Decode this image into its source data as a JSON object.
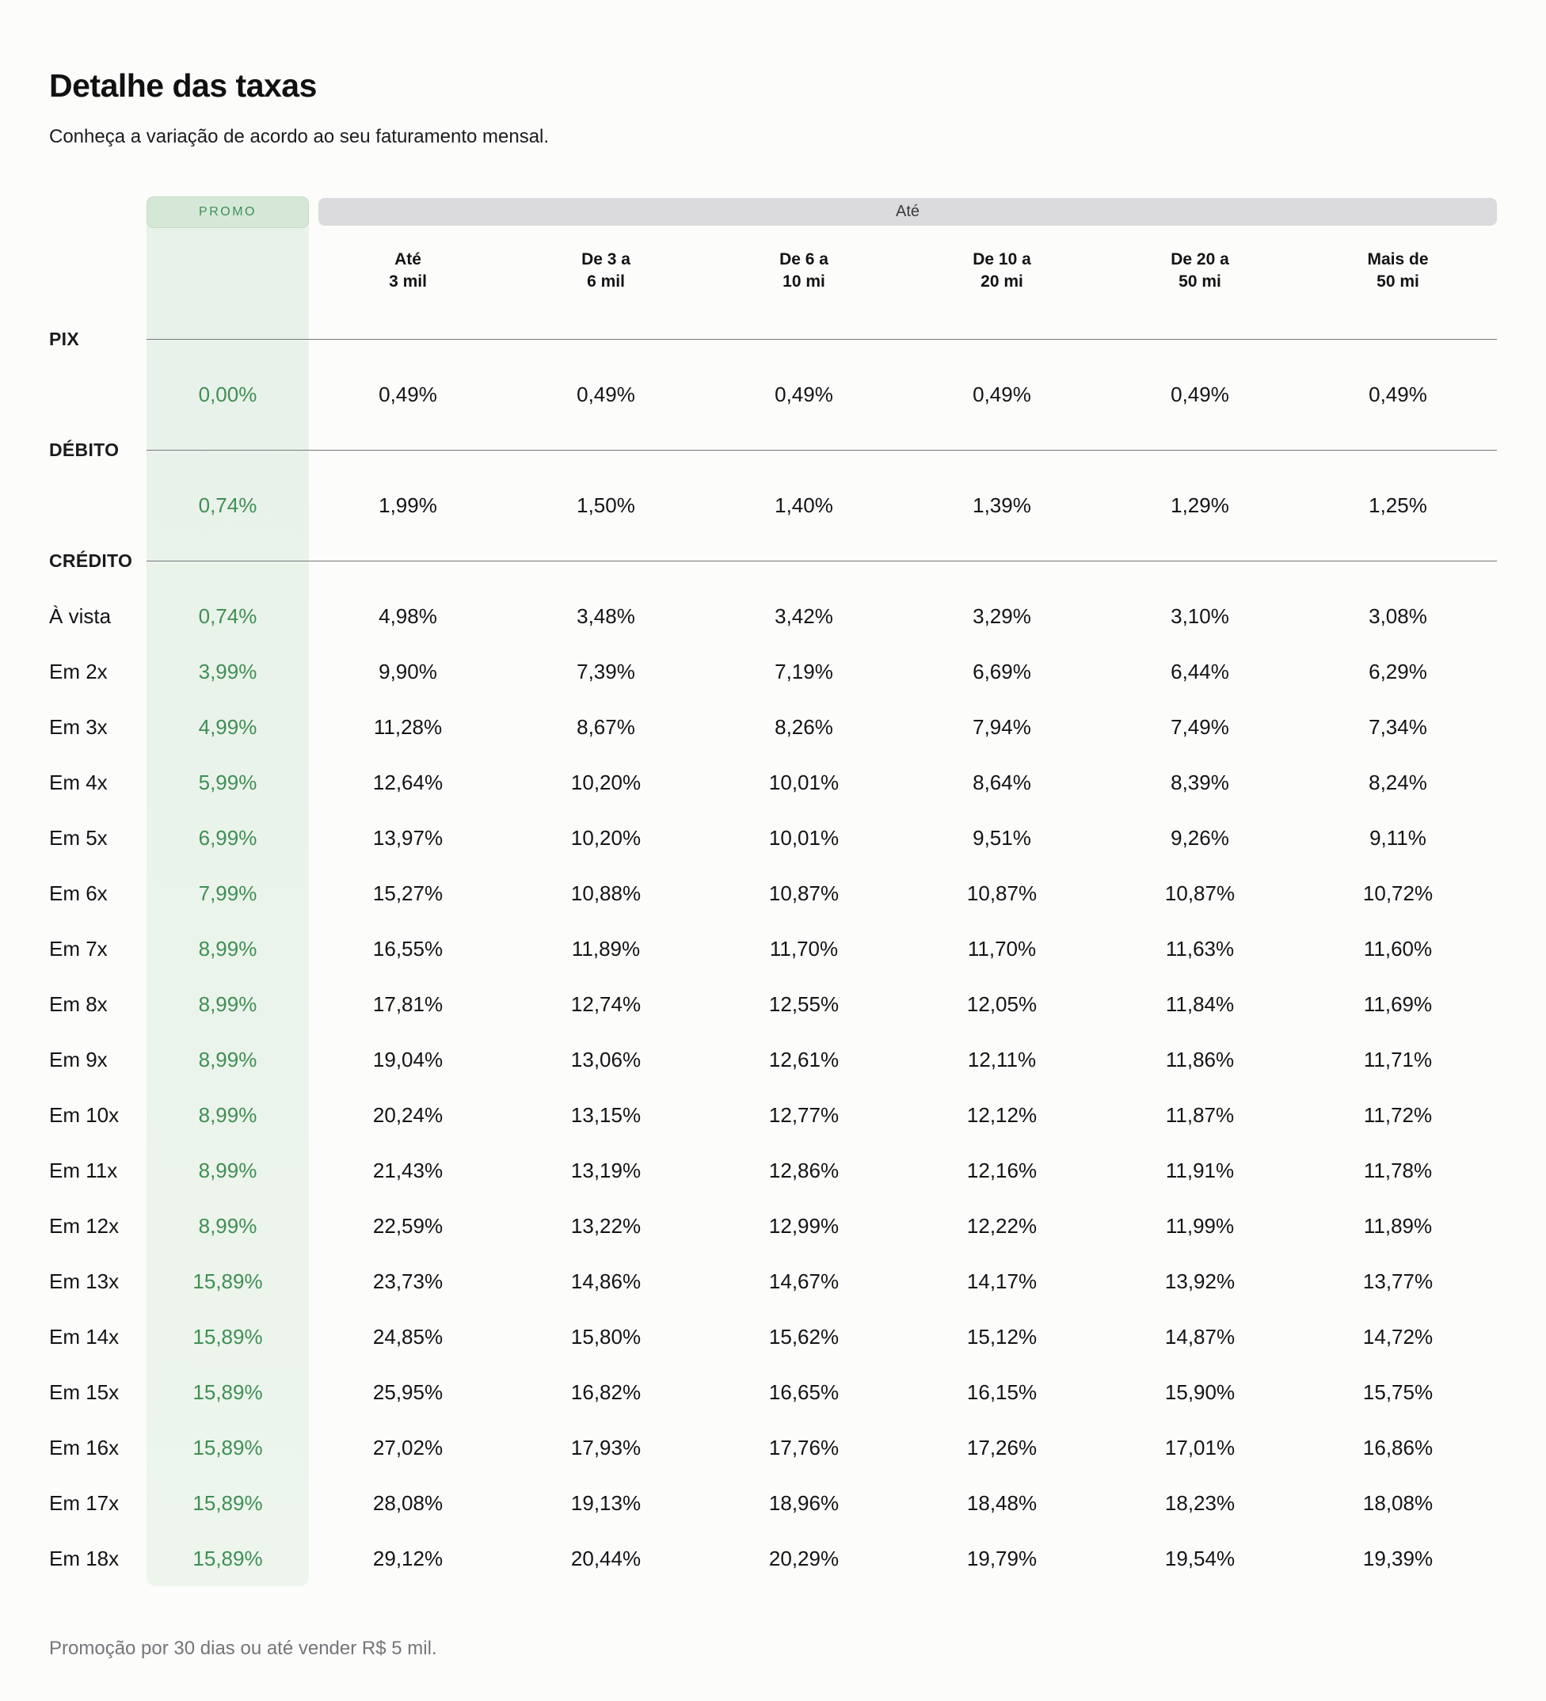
{
  "chart_data": {
    "type": "table",
    "title": "Detalhe das taxas",
    "subtitle": "Conheça a variação de acordo ao seu faturamento mensal.",
    "footnote": "Promoção por 30 dias ou até vender R$ 5 mil.",
    "promo_badge": "PROMO",
    "group_header": "Até",
    "columns": [
      [
        "Até",
        "3 mil"
      ],
      [
        "De 3 a",
        "6 mil"
      ],
      [
        "De 6 a",
        "10 mi"
      ],
      [
        "De 10 a",
        "20 mi"
      ],
      [
        "De 20 a",
        "50 mi"
      ],
      [
        "Mais de",
        "50 mi"
      ]
    ],
    "sections": [
      {
        "label": "PIX",
        "rows": [
          {
            "label": "",
            "promo": "0,00%",
            "values": [
              "0,49%",
              "0,49%",
              "0,49%",
              "0,49%",
              "0,49%",
              "0,49%"
            ]
          }
        ]
      },
      {
        "label": "DÉBITO",
        "rows": [
          {
            "label": "",
            "promo": "0,74%",
            "values": [
              "1,99%",
              "1,50%",
              "1,40%",
              "1,39%",
              "1,29%",
              "1,25%"
            ]
          }
        ]
      },
      {
        "label": "CRÉDITO",
        "rows": [
          {
            "label": "À vista",
            "promo": "0,74%",
            "values": [
              "4,98%",
              "3,48%",
              "3,42%",
              "3,29%",
              "3,10%",
              "3,08%"
            ]
          },
          {
            "label": "Em 2x",
            "promo": "3,99%",
            "values": [
              "9,90%",
              "7,39%",
              "7,19%",
              "6,69%",
              "6,44%",
              "6,29%"
            ]
          },
          {
            "label": "Em 3x",
            "promo": "4,99%",
            "values": [
              "11,28%",
              "8,67%",
              "8,26%",
              "7,94%",
              "7,49%",
              "7,34%"
            ]
          },
          {
            "label": "Em 4x",
            "promo": "5,99%",
            "values": [
              "12,64%",
              "10,20%",
              "10,01%",
              "8,64%",
              "8,39%",
              "8,24%"
            ]
          },
          {
            "label": "Em 5x",
            "promo": "6,99%",
            "values": [
              "13,97%",
              "10,20%",
              "10,01%",
              "9,51%",
              "9,26%",
              "9,11%"
            ]
          },
          {
            "label": "Em 6x",
            "promo": "7,99%",
            "values": [
              "15,27%",
              "10,88%",
              "10,87%",
              "10,87%",
              "10,87%",
              "10,72%"
            ]
          },
          {
            "label": "Em 7x",
            "promo": "8,99%",
            "values": [
              "16,55%",
              "11,89%",
              "11,70%",
              "11,70%",
              "11,63%",
              "11,60%"
            ]
          },
          {
            "label": "Em 8x",
            "promo": "8,99%",
            "values": [
              "17,81%",
              "12,74%",
              "12,55%",
              "12,05%",
              "11,84%",
              "11,69%"
            ]
          },
          {
            "label": "Em 9x",
            "promo": "8,99%",
            "values": [
              "19,04%",
              "13,06%",
              "12,61%",
              "12,11%",
              "11,86%",
              "11,71%"
            ]
          },
          {
            "label": "Em 10x",
            "promo": "8,99%",
            "values": [
              "20,24%",
              "13,15%",
              "12,77%",
              "12,12%",
              "11,87%",
              "11,72%"
            ]
          },
          {
            "label": "Em 11x",
            "promo": "8,99%",
            "values": [
              "21,43%",
              "13,19%",
              "12,86%",
              "12,16%",
              "11,91%",
              "11,78%"
            ]
          },
          {
            "label": "Em 12x",
            "promo": "8,99%",
            "values": [
              "22,59%",
              "13,22%",
              "12,99%",
              "12,22%",
              "11,99%",
              "11,89%"
            ]
          },
          {
            "label": "Em 13x",
            "promo": "15,89%",
            "values": [
              "23,73%",
              "14,86%",
              "14,67%",
              "14,17%",
              "13,92%",
              "13,77%"
            ]
          },
          {
            "label": "Em 14x",
            "promo": "15,89%",
            "values": [
              "24,85%",
              "15,80%",
              "15,62%",
              "15,12%",
              "14,87%",
              "14,72%"
            ]
          },
          {
            "label": "Em 15x",
            "promo": "15,89%",
            "values": [
              "25,95%",
              "16,82%",
              "16,65%",
              "16,15%",
              "15,90%",
              "15,75%"
            ]
          },
          {
            "label": "Em 16x",
            "promo": "15,89%",
            "values": [
              "27,02%",
              "17,93%",
              "17,76%",
              "17,26%",
              "17,01%",
              "16,86%"
            ]
          },
          {
            "label": "Em 17x",
            "promo": "15,89%",
            "values": [
              "28,08%",
              "19,13%",
              "18,96%",
              "18,48%",
              "18,23%",
              "18,08%"
            ]
          },
          {
            "label": "Em 18x",
            "promo": "15,89%",
            "values": [
              "29,12%",
              "20,44%",
              "20,29%",
              "19,79%",
              "19,54%",
              "19,39%"
            ]
          }
        ]
      }
    ],
    "colors": {
      "promo_green": "#3f8f55",
      "promo_band_bg": "#e8f2e9",
      "badge_bg": "#d5e8d7",
      "group_bar_bg": "#dbdbdd"
    },
    "layout_hints": {
      "promo_column_highlighted": true,
      "group_header_spans_all_revenue_columns": true
    }
  }
}
